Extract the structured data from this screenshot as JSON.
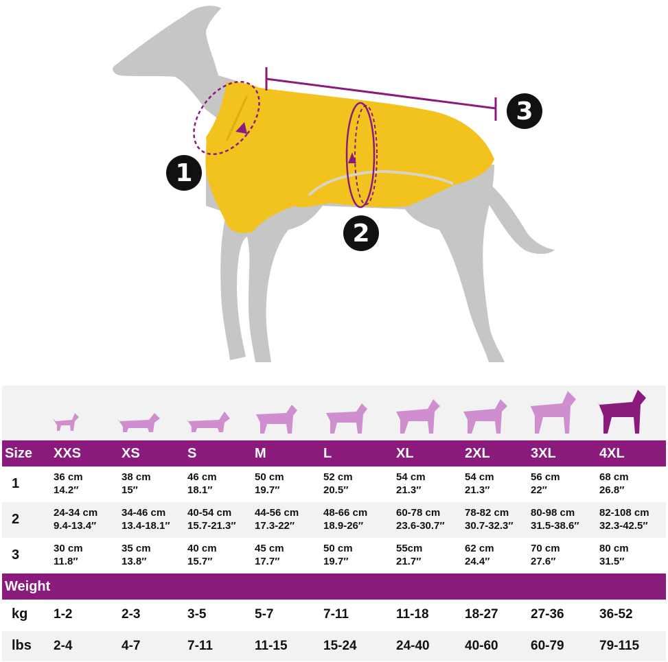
{
  "markers": [
    "1",
    "2",
    "3"
  ],
  "colors": {
    "coat": "#f2c21f",
    "accent": "#8b1a7d",
    "dog": "#c6c6c6",
    "icon": "#cf8fcf"
  },
  "size_label": "Size",
  "sizes": [
    "XXS",
    "XS",
    "S",
    "M",
    "L",
    "XL",
    "2XL",
    "3XL",
    "4XL"
  ],
  "measure_rows": [
    {
      "label": "1",
      "cells": [
        [
          "36 cm",
          "14.2″"
        ],
        [
          "38 cm",
          "15″"
        ],
        [
          "46 cm",
          "18.1″"
        ],
        [
          "50 cm",
          "19.7″"
        ],
        [
          "52 cm",
          "20.5″"
        ],
        [
          "54 cm",
          "21.3″"
        ],
        [
          "54 cm",
          "21.3″"
        ],
        [
          "56 cm",
          "22″"
        ],
        [
          "68 cm",
          "26.8″"
        ]
      ]
    },
    {
      "label": "2",
      "cells": [
        [
          "24-34 cm",
          "9.4-13.4″"
        ],
        [
          "34-46 cm",
          "13.4-18.1″"
        ],
        [
          "40-54 cm",
          "15.7-21.3″"
        ],
        [
          "44-56 cm",
          "17.3-22″"
        ],
        [
          "48-66 cm",
          "18.9-26″"
        ],
        [
          "60-78 cm",
          "23.6-30.7″"
        ],
        [
          "78-82 cm",
          "30.7-32.3″"
        ],
        [
          "80-98 cm",
          "31.5-38.6″"
        ],
        [
          "82-108 cm",
          "32.3-42.5″"
        ]
      ]
    },
    {
      "label": "3",
      "cells": [
        [
          "30 cm",
          "11.8″"
        ],
        [
          "35 cm",
          "13.8″"
        ],
        [
          "40 cm",
          "15.7″"
        ],
        [
          "45 cm",
          "17.7″"
        ],
        [
          "50 cm",
          "19.7″"
        ],
        [
          "55cm",
          "21.7″"
        ],
        [
          "62 cm",
          "24.4″"
        ],
        [
          "70 cm",
          "27.6″"
        ],
        [
          "80 cm",
          "31.5″"
        ]
      ]
    }
  ],
  "weight_label": "Weight",
  "weight_rows": [
    {
      "label": "kg",
      "cells": [
        "1-2",
        "2-3",
        "3-5",
        "5-7",
        "7-11",
        "11-18",
        "18-27",
        "27-36",
        "36-52"
      ]
    },
    {
      "label": "lbs",
      "cells": [
        "2-4",
        "4-7",
        "7-11",
        "11-15",
        "15-24",
        "24-40",
        "40-60",
        "60-79",
        "79-115"
      ]
    }
  ]
}
